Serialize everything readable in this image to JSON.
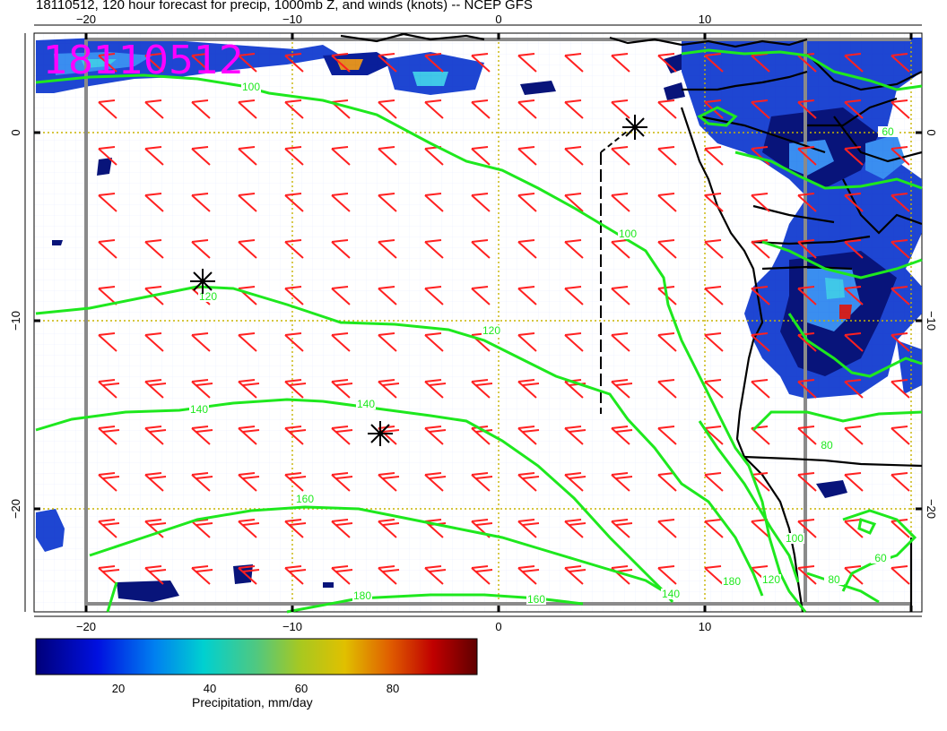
{
  "title": "18110512, 120 hour forecast for precip, 1000mb Z, and winds (knots) -- NCEP GFS",
  "date_stamp": "18110512",
  "axes": {
    "top_labels": [
      "−20",
      "−10",
      "0",
      "10"
    ],
    "bottom_labels": [
      "−20",
      "−10",
      "0",
      "10"
    ],
    "left_labels": [
      "0",
      "−10",
      "−20"
    ],
    "right_labels": [
      "0",
      "−10",
      "−20"
    ]
  },
  "contours": {
    "color": "#1ee81e",
    "labels": [
      "100",
      "100",
      "120",
      "120",
      "140",
      "140",
      "160",
      "160",
      "180",
      "180",
      "140",
      "120",
      "100",
      "80",
      "60",
      "80",
      "60"
    ]
  },
  "colorbar": {
    "ticks": [
      "20",
      "40",
      "60",
      "80"
    ],
    "title": "Precipitation, mm/day"
  },
  "colors": {
    "wind_barbs": "#ff2020",
    "coast": "#000000",
    "grid": "#c8b400",
    "stamp": "#ff00ff",
    "precip_low": "#08147a",
    "precip_mid": "#1e46d2"
  }
}
